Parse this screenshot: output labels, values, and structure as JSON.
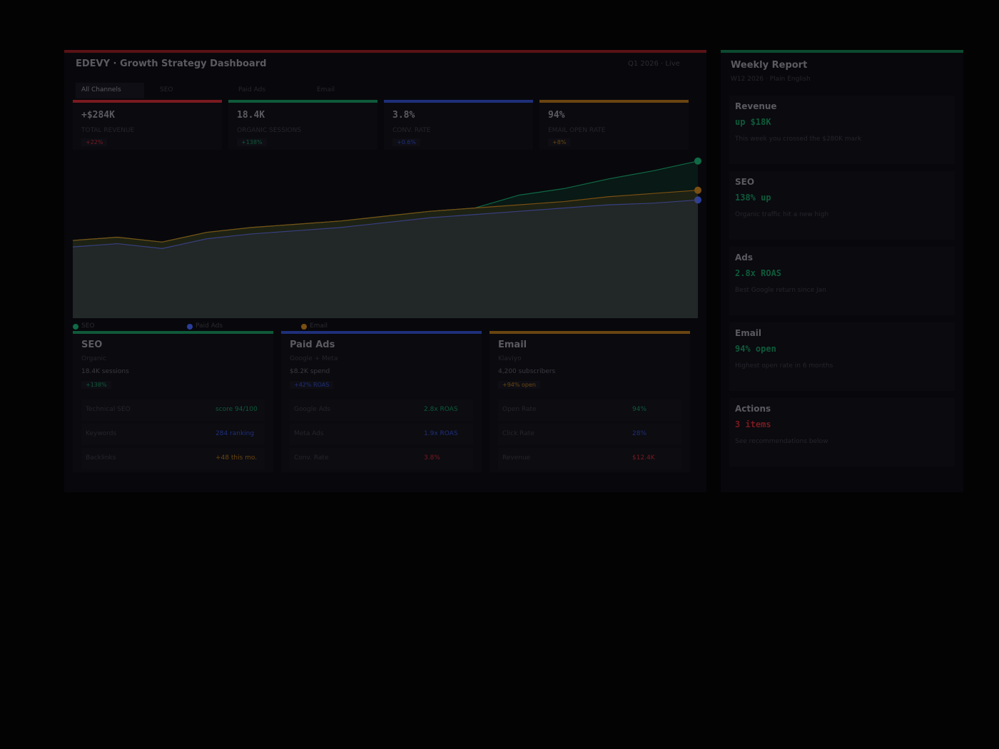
{
  "header": {
    "title": "EDEVY · Growth Strategy Dashboard",
    "status": "Q1 2026 · Live"
  },
  "tabs": [
    "All Channels",
    "SEO",
    "Paid Ads",
    "Email"
  ],
  "kpis": [
    {
      "value": "+$284K",
      "label": "TOTAL REVENUE",
      "delta": "+22%",
      "color": "#7a1a1f"
    },
    {
      "value": "18.4K",
      "label": "ORGANIC SESSIONS",
      "delta": "+138%",
      "color": "#0f5a3a"
    },
    {
      "value": "3.8%",
      "label": "CONV. RATE",
      "delta": "+0.6%",
      "color": "#1f2f7a"
    },
    {
      "value": "94%",
      "label": "EMAIL OPEN RATE",
      "delta": "+8%",
      "color": "#6a4510"
    }
  ],
  "chart_data": {
    "type": "area",
    "categories": [
      null,
      null,
      null,
      null,
      null,
      null,
      null,
      null,
      null,
      null,
      null,
      null,
      null,
      null,
      null
    ],
    "ylim": [
      0,
      100
    ],
    "series": [
      {
        "name": "SEO",
        "color": "#0f6a45",
        "values": [
          48,
          50,
          47,
          53,
          56,
          58,
          60,
          63,
          66,
          68,
          76,
          80,
          86,
          91,
          97
        ]
      },
      {
        "name": "Paid Ads",
        "color": "#2a3d9a",
        "values": [
          44,
          46,
          43,
          49,
          52,
          54,
          56,
          59,
          62,
          64,
          66,
          68,
          70,
          71,
          73
        ]
      },
      {
        "name": "Email",
        "color": "#7a4f12",
        "values": [
          48,
          50,
          47,
          53,
          56,
          58,
          60,
          63,
          66,
          68,
          70,
          72,
          75,
          77,
          79
        ]
      }
    ]
  },
  "channels": [
    {
      "title": "SEO",
      "subtitle": "Organic",
      "metric": "18.4K sessions",
      "badge": "+138%",
      "color": "#0f5a3a",
      "rows": [
        [
          "Technical SEO",
          "score 94/100"
        ],
        [
          "Keywords",
          "284 ranking"
        ],
        [
          "Backlinks",
          "+48 this mo."
        ]
      ],
      "row_colors": [
        "#0f5a3a",
        "#1f2f7a",
        "#6a4510"
      ]
    },
    {
      "title": "Paid Ads",
      "subtitle": "Google + Meta",
      "metric": "$8.2K spend",
      "badge": "+42% ROAS",
      "color": "#1f2f7a",
      "rows": [
        [
          "Google Ads",
          "2.8x ROAS"
        ],
        [
          "Meta Ads",
          "1.9x ROAS"
        ],
        [
          "Conv. Rate",
          "3.8%"
        ]
      ],
      "row_colors": [
        "#0f5a3a",
        "#1f2f7a",
        "#7a1a1f"
      ]
    },
    {
      "title": "Email",
      "subtitle": "Klaviyo",
      "metric": "4,200 subscribers",
      "badge": "+94% open",
      "color": "#6a4510",
      "rows": [
        [
          "Open Rate",
          "94%"
        ],
        [
          "Click Rate",
          "28%"
        ],
        [
          "Revenue",
          "$12.4K"
        ]
      ],
      "row_colors": [
        "#0f5a3a",
        "#1f2f7a",
        "#7a1a1f"
      ]
    }
  ],
  "report": {
    "title": "Weekly Report",
    "subtitle": "W12 2026 · Plain English",
    "items": [
      {
        "title": "Revenue",
        "headline": "up $18K",
        "note": "This week you crossed the $280K mark",
        "color": "#0f5a3a"
      },
      {
        "title": "SEO",
        "headline": "138% up",
        "note": "Organic traffic hit a new high",
        "color": "#0f5a3a"
      },
      {
        "title": "Ads",
        "headline": "2.8x ROAS",
        "note": "Best Google return since Jan",
        "color": "#0f5a3a"
      },
      {
        "title": "Email",
        "headline": "94% open",
        "note": "Highest open rate in 6 months",
        "color": "#0f5a3a"
      },
      {
        "title": "Actions",
        "headline": "3 items",
        "note": "See recommendations below",
        "color": "#7a1a1f"
      }
    ]
  }
}
